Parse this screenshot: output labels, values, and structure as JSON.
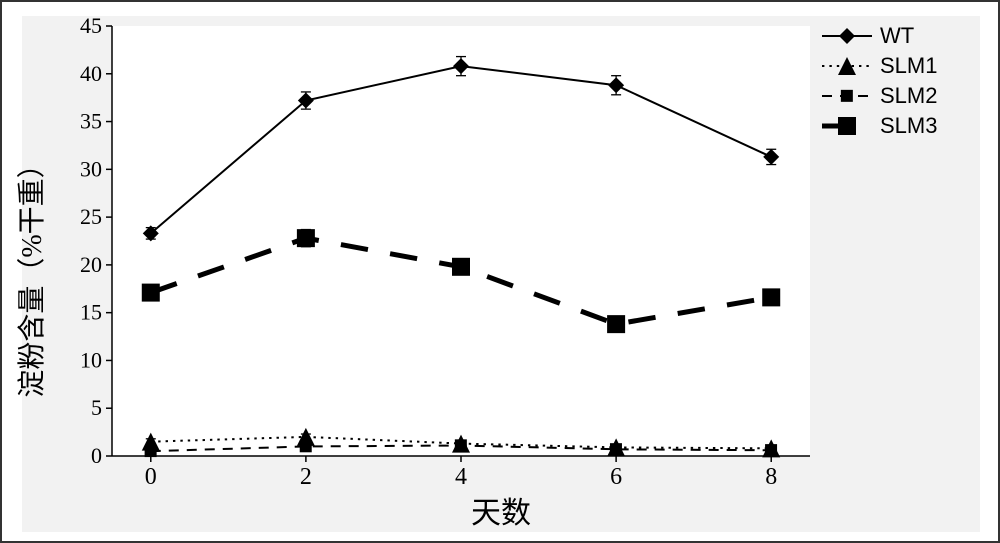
{
  "chart": {
    "type": "line",
    "title": null,
    "background_color": "#ffffff",
    "outer_border_color": "#333333",
    "inner_panel_color": "#f2f2f2",
    "plot_area_color": "#ffffff",
    "axis_color": "#000000",
    "tick_font_size": 22,
    "xlabel": "天数",
    "ylabel": "淀粉含量（%干重）",
    "label_fontsize": 28,
    "x": [
      0,
      2,
      4,
      6,
      8
    ],
    "xlim": [
      -0.5,
      8.5
    ],
    "xtick_step": 2,
    "ylim": [
      0,
      45
    ],
    "ytick_step": 5,
    "series": [
      {
        "name": "WT",
        "y": [
          23.3,
          37.2,
          40.8,
          38.8,
          31.3
        ],
        "err": [
          0.6,
          0.9,
          1.0,
          1.0,
          0.8
        ],
        "color": "#000000",
        "marker": "diamond",
        "marker_size": 8,
        "line_width": 2,
        "dash": "solid"
      },
      {
        "name": "SLM1",
        "y": [
          1.5,
          2.0,
          1.3,
          0.9,
          0.8
        ],
        "err": [
          0.3,
          0.3,
          0.2,
          0.2,
          0.2
        ],
        "color": "#000000",
        "marker": "triangle",
        "marker_size": 9,
        "line_width": 2,
        "dash": "dot"
      },
      {
        "name": "SLM2",
        "y": [
          0.5,
          1.0,
          1.1,
          0.7,
          0.6
        ],
        "err": [
          0.2,
          0.2,
          0.2,
          0.2,
          0.2
        ],
        "color": "#000000",
        "marker": "square-small",
        "marker_size": 8,
        "line_width": 2,
        "dash": "dash"
      },
      {
        "name": "SLM3",
        "y": [
          17.1,
          22.8,
          19.8,
          13.8,
          16.6
        ],
        "err": [
          0.6,
          0.9,
          0.6,
          0.5,
          0.5
        ],
        "color": "#000000",
        "marker": "square-big",
        "marker_size": 18,
        "line_width": 5,
        "dash": "longdash"
      }
    ],
    "legend": {
      "position": "top-right",
      "items": [
        "WT",
        "SLM1",
        "SLM2",
        "SLM3"
      ],
      "fontsize": 22
    }
  }
}
